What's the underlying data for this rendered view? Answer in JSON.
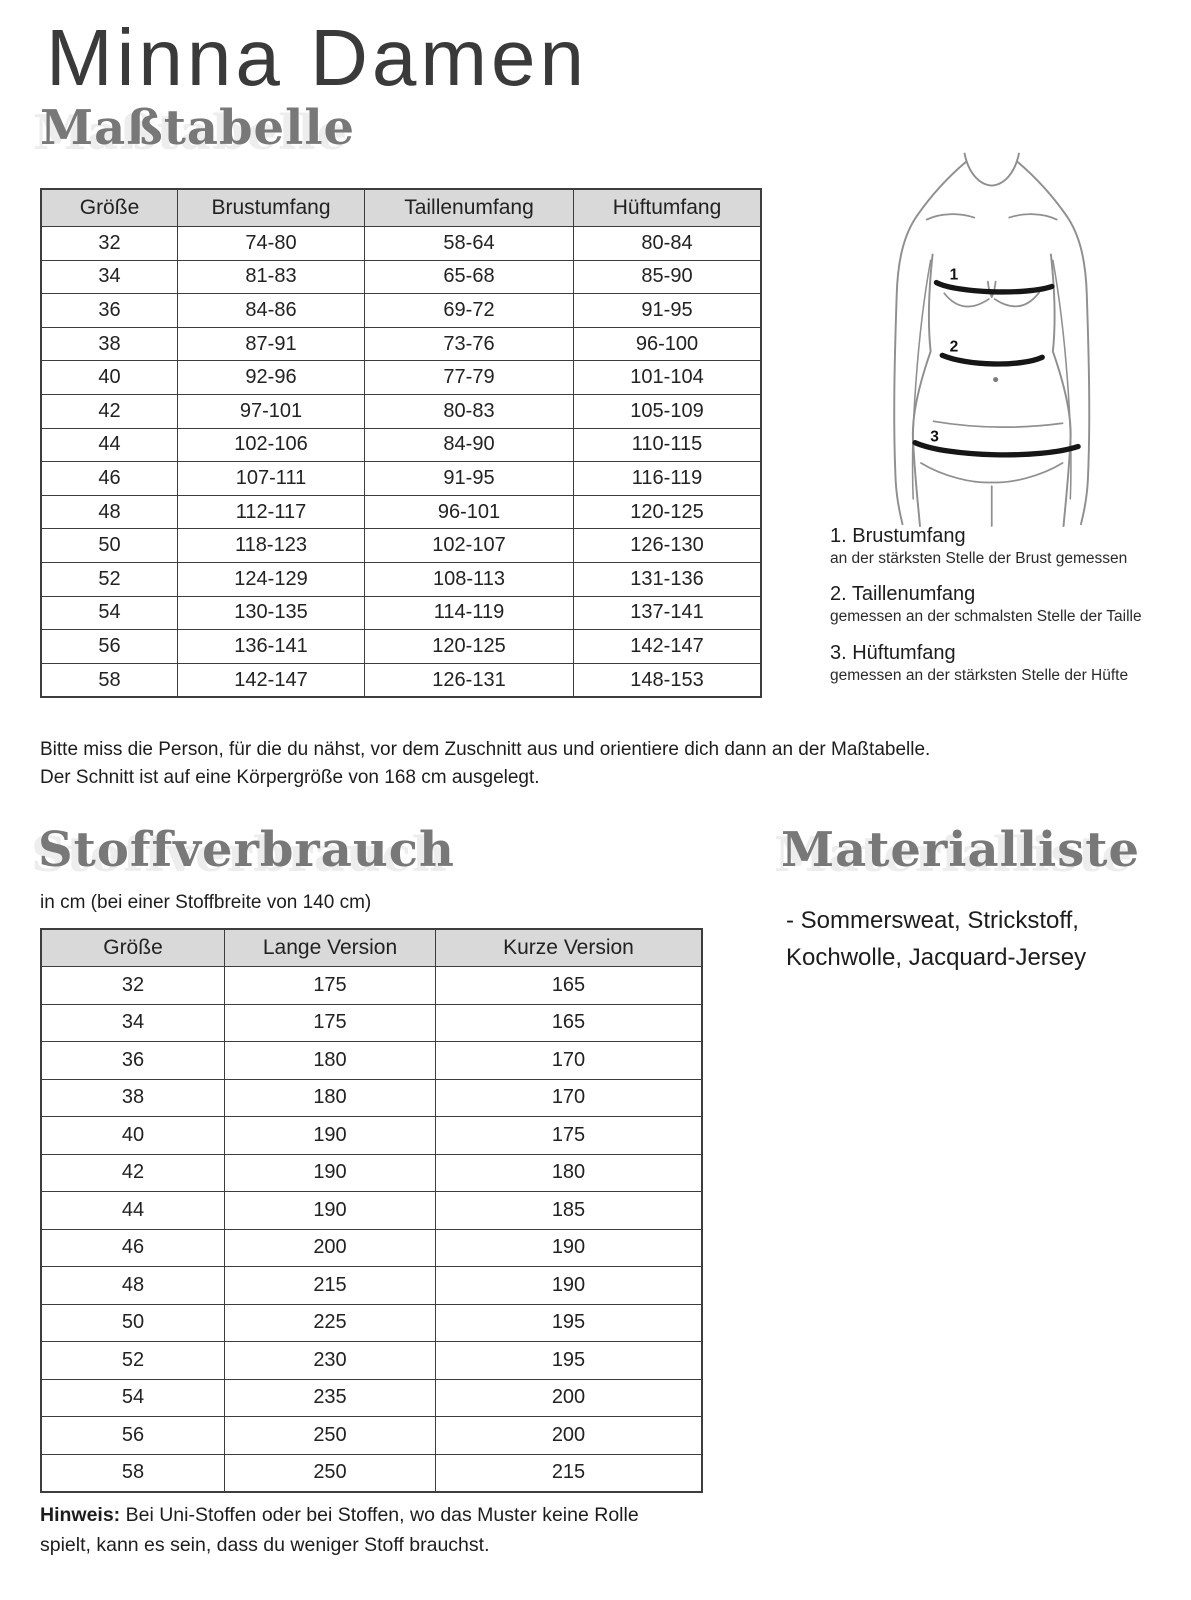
{
  "header": {
    "title": "Minna Damen"
  },
  "size_section": {
    "heading": "Maßtabelle",
    "table": {
      "headers": [
        "Größe",
        "Brustumfang",
        "Taillenumfang",
        "Hüftumfang"
      ],
      "rows": [
        [
          "32",
          "74-80",
          "58-64",
          "80-84"
        ],
        [
          "34",
          "81-83",
          "65-68",
          "85-90"
        ],
        [
          "36",
          "84-86",
          "69-72",
          "91-95"
        ],
        [
          "38",
          "87-91",
          "73-76",
          "96-100"
        ],
        [
          "40",
          "92-96",
          "77-79",
          "101-104"
        ],
        [
          "42",
          "97-101",
          "80-83",
          "105-109"
        ],
        [
          "44",
          "102-106",
          "84-90",
          "110-115"
        ],
        [
          "46",
          "107-111",
          "91-95",
          "116-119"
        ],
        [
          "48",
          "112-117",
          "96-101",
          "120-125"
        ],
        [
          "50",
          "118-123",
          "102-107",
          "126-130"
        ],
        [
          "52",
          "124-129",
          "108-113",
          "131-136"
        ],
        [
          "54",
          "130-135",
          "114-119",
          "137-141"
        ],
        [
          "56",
          "136-141",
          "120-125",
          "142-147"
        ],
        [
          "58",
          "142-147",
          "126-131",
          "148-153"
        ]
      ]
    },
    "figure": {
      "labels": [
        "1",
        "2",
        "3"
      ]
    },
    "annotations": [
      {
        "title": "1. Brustumfang",
        "desc": "an der stärksten Stelle der Brust gemessen"
      },
      {
        "title": "2. Taillenumfang",
        "desc": "gemessen an der schmalsten Stelle der Taille"
      },
      {
        "title": "3. Hüftumfang",
        "desc": "gemessen an der stärksten Stelle der Hüfte"
      }
    ],
    "note_line1": "Bitte miss die Person, für die du nähst, vor dem Zuschnitt aus und orientiere dich dann an der Maßtabelle.",
    "note_line2": "Der Schnitt ist auf eine Körpergröße von 168 cm ausgelegt."
  },
  "fabric_section": {
    "heading": "Stoffverbrauch",
    "subtitle": "in cm (bei einer Stoffbreite von 140 cm)",
    "table": {
      "headers": [
        "Größe",
        "Lange Version",
        "Kurze Version"
      ],
      "rows": [
        [
          "32",
          "175",
          "165"
        ],
        [
          "34",
          "175",
          "165"
        ],
        [
          "36",
          "180",
          "170"
        ],
        [
          "38",
          "180",
          "170"
        ],
        [
          "40",
          "190",
          "175"
        ],
        [
          "42",
          "190",
          "180"
        ],
        [
          "44",
          "190",
          "185"
        ],
        [
          "46",
          "200",
          "190"
        ],
        [
          "48",
          "215",
          "190"
        ],
        [
          "50",
          "225",
          "195"
        ],
        [
          "52",
          "230",
          "195"
        ],
        [
          "54",
          "235",
          "200"
        ],
        [
          "56",
          "250",
          "200"
        ],
        [
          "58",
          "250",
          "215"
        ]
      ]
    },
    "hinweis_label": "Hinweis:",
    "hinweis_line1": " Bei Uni-Stoffen oder bei Stoffen, wo das Muster keine Rolle",
    "hinweis_line2": "spielt, kann es sein, dass du weniger Stoff brauchst."
  },
  "material_section": {
    "heading": "Materialliste",
    "line1": "- Sommersweat, Strickstoff,",
    "line2": "Kochwolle, Jacquard-Jersey"
  },
  "colors": {
    "heading_gray": "#787878",
    "table_header_bg": "#d9d9d9",
    "table_border": "#3d3d3d",
    "body_sketch_line": "#8f8f8f",
    "measure_band": "#161616"
  }
}
